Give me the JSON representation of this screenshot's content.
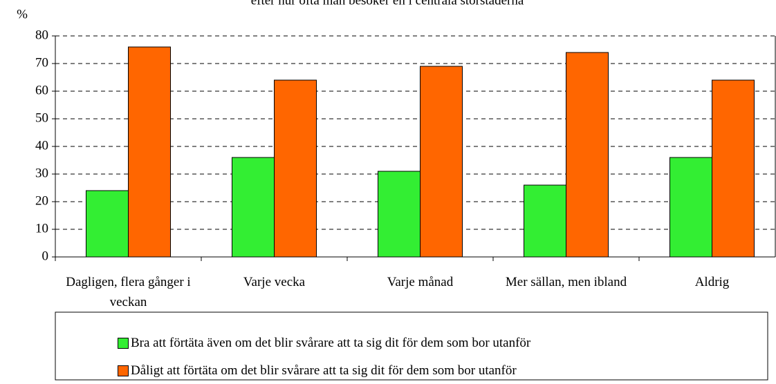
{
  "chart_data": {
    "type": "bar",
    "title": "efter hur ofta man besöker en i centrala storstäderna",
    "y_label": "%",
    "categories": [
      "Dagligen, flera gånger i veckan",
      "Varje vecka",
      "Varje månad",
      "Mer sällan, men ibland",
      "Aldrig"
    ],
    "series": [
      {
        "name": "Bra att förtäta även om det blir svårare att ta sig dit för dem som bor utanför",
        "color": "#33ee33",
        "values": [
          24,
          36,
          31,
          26,
          36
        ]
      },
      {
        "name": "Dåligt att förtäta om det blir svårare att ta sig dit för dem som bor utanför",
        "color": "#ff6600",
        "values": [
          76,
          64,
          69,
          74,
          64
        ]
      }
    ],
    "ylim": [
      0,
      80
    ],
    "yticks": [
      0,
      10,
      20,
      30,
      40,
      50,
      60,
      70,
      80
    ],
    "grid": true,
    "legend": "bottom"
  }
}
